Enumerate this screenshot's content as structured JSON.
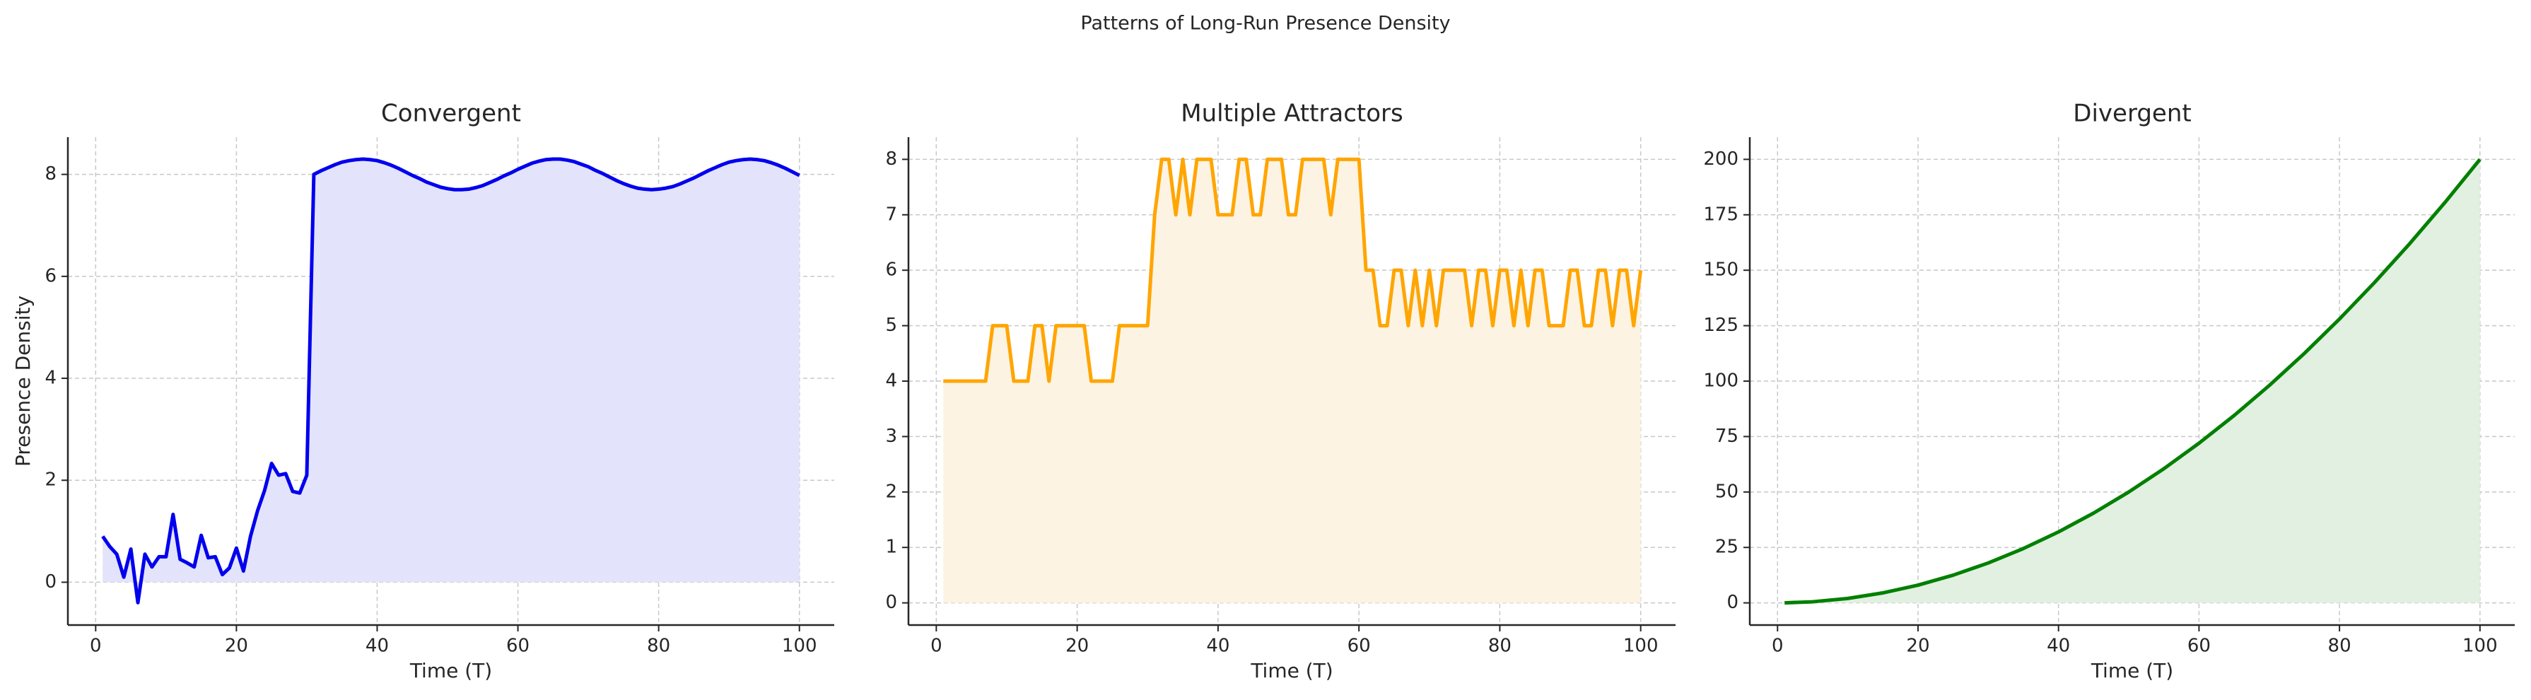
{
  "title": "Patterns of Long-Run Presence Density",
  "chart_data": [
    {
      "type": "line",
      "title": "Convergent",
      "xlabel": "Time (T)",
      "ylabel": "Presence Density",
      "x": [
        1,
        2,
        3,
        4,
        5,
        6,
        7,
        8,
        9,
        10,
        11,
        12,
        13,
        14,
        15,
        16,
        17,
        18,
        19,
        20,
        21,
        22,
        23,
        24,
        25,
        26,
        27,
        28,
        29,
        30,
        31,
        32,
        33,
        34,
        35,
        36,
        37,
        38,
        39,
        40,
        41,
        42,
        43,
        44,
        45,
        46,
        47,
        48,
        49,
        50,
        51,
        52,
        53,
        54,
        55,
        56,
        57,
        58,
        59,
        60,
        61,
        62,
        63,
        64,
        65,
        66,
        67,
        68,
        69,
        70,
        71,
        72,
        73,
        74,
        75,
        76,
        77,
        78,
        79,
        80,
        81,
        82,
        83,
        84,
        85,
        86,
        87,
        88,
        89,
        90,
        91,
        92,
        93,
        94,
        95,
        96,
        97,
        98,
        99,
        100
      ],
      "series": [
        {
          "color": "#0000ee",
          "fill": "#e3e3fb",
          "values": [
            0.9,
            0.7,
            0.55,
            0.1,
            0.65,
            -0.4,
            0.55,
            0.3,
            0.5,
            0.5,
            1.33,
            0.45,
            0.38,
            0.3,
            0.92,
            0.48,
            0.5,
            0.15,
            0.28,
            0.67,
            0.22,
            0.9,
            1.4,
            1.8,
            2.33,
            2.1,
            2.13,
            1.78,
            1.75,
            2.1,
            8.0,
            8.07,
            8.13,
            8.19,
            8.24,
            8.27,
            8.29,
            8.3,
            8.29,
            8.27,
            8.23,
            8.18,
            8.12,
            8.05,
            7.98,
            7.92,
            7.85,
            7.8,
            7.75,
            7.72,
            7.7,
            7.7,
            7.71,
            7.74,
            7.78,
            7.84,
            7.9,
            7.97,
            8.03,
            8.1,
            8.16,
            8.22,
            8.26,
            8.29,
            8.3,
            8.3,
            8.28,
            8.25,
            8.2,
            8.15,
            8.08,
            8.02,
            7.95,
            7.88,
            7.82,
            7.77,
            7.73,
            7.71,
            7.7,
            7.71,
            7.73,
            7.76,
            7.81,
            7.87,
            7.93,
            8.0,
            8.07,
            8.13,
            8.19,
            8.24,
            8.27,
            8.29,
            8.3,
            8.29,
            8.27,
            8.23,
            8.18,
            8.12,
            8.05,
            7.98
          ]
        }
      ],
      "xlim": [
        -3.95,
        104.95
      ],
      "ylim": [
        -0.84,
        8.73
      ],
      "xticks": [
        0,
        20,
        40,
        60,
        80,
        100
      ],
      "yticks": [
        0,
        2,
        4,
        6,
        8
      ],
      "grid": true
    },
    {
      "type": "line",
      "title": "Multiple Attractors",
      "xlabel": "Time (T)",
      "x": [
        1,
        2,
        3,
        4,
        5,
        6,
        7,
        8,
        9,
        10,
        11,
        12,
        13,
        14,
        15,
        16,
        17,
        18,
        19,
        20,
        21,
        22,
        23,
        24,
        25,
        26,
        27,
        28,
        29,
        30,
        31,
        32,
        33,
        34,
        35,
        36,
        37,
        38,
        39,
        40,
        41,
        42,
        43,
        44,
        45,
        46,
        47,
        48,
        49,
        50,
        51,
        52,
        53,
        54,
        55,
        56,
        57,
        58,
        59,
        60,
        61,
        62,
        63,
        64,
        65,
        66,
        67,
        68,
        69,
        70,
        71,
        72,
        73,
        74,
        75,
        76,
        77,
        78,
        79,
        80,
        81,
        82,
        83,
        84,
        85,
        86,
        87,
        88,
        89,
        90,
        91,
        92,
        93,
        94,
        95,
        96,
        97,
        98,
        99,
        100
      ],
      "series": [
        {
          "color": "#ffa500",
          "fill": "#fdf3e2",
          "values": [
            4,
            4,
            4,
            4,
            4,
            4,
            4,
            5,
            5,
            5,
            4,
            4,
            4,
            5,
            5,
            4,
            5,
            5,
            5,
            5,
            5,
            4,
            4,
            4,
            4,
            5,
            5,
            5,
            5,
            5,
            7,
            8,
            8,
            7,
            8,
            7,
            8,
            8,
            8,
            7,
            7,
            7,
            8,
            8,
            7,
            7,
            8,
            8,
            8,
            7,
            7,
            8,
            8,
            8,
            8,
            7,
            8,
            8,
            8,
            8,
            6,
            6,
            5,
            5,
            6,
            6,
            5,
            6,
            5,
            6,
            5,
            6,
            6,
            6,
            6,
            5,
            6,
            6,
            5,
            6,
            6,
            5,
            6,
            5,
            6,
            6,
            5,
            5,
            5,
            6,
            6,
            5,
            5,
            6,
            6,
            5,
            6,
            6,
            5,
            6
          ]
        }
      ],
      "xlim": [
        -3.95,
        104.95
      ],
      "ylim": [
        -0.4,
        8.4
      ],
      "xticks": [
        0,
        20,
        40,
        60,
        80,
        100
      ],
      "yticks": [
        0,
        1,
        2,
        3,
        4,
        5,
        6,
        7,
        8
      ],
      "grid": true
    },
    {
      "type": "line",
      "title": "Divergent",
      "xlabel": "Time (T)",
      "x": [
        1,
        5,
        10,
        15,
        20,
        25,
        30,
        35,
        40,
        45,
        50,
        55,
        60,
        65,
        70,
        75,
        80,
        85,
        90,
        95,
        100
      ],
      "series": [
        {
          "color": "#008000",
          "fill": "#e2f0e2",
          "values": [
            0.02,
            0.5,
            2,
            4.5,
            8,
            12.5,
            18,
            24.5,
            32,
            40.5,
            50,
            60.5,
            72,
            84.5,
            98,
            112.5,
            128,
            144.5,
            162,
            180.5,
            200
          ]
        }
      ],
      "xlim": [
        -3.95,
        104.95
      ],
      "ylim": [
        -10,
        210
      ],
      "xticks": [
        0,
        20,
        40,
        60,
        80,
        100
      ],
      "yticks": [
        0,
        25,
        50,
        75,
        100,
        125,
        150,
        175,
        200
      ],
      "grid": true
    }
  ]
}
